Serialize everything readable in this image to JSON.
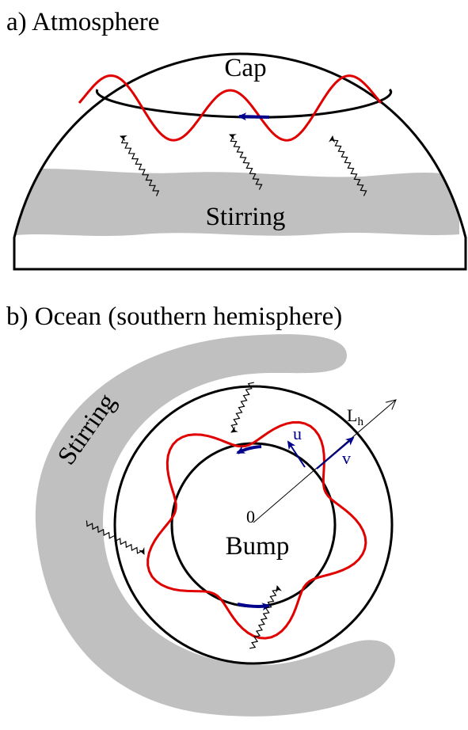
{
  "panel_a": {
    "title": "a) Atmosphere",
    "cap_label": "Cap",
    "stirring_label": "Stirring"
  },
  "panel_b": {
    "title": "b) Ocean (southern hemisphere)",
    "stirring_label": "Stirring",
    "length_label": {
      "text": "L",
      "subscript": "h"
    },
    "u_label": "u",
    "v_label": "v",
    "origin_label": "0",
    "bump_label": "Bump"
  }
}
